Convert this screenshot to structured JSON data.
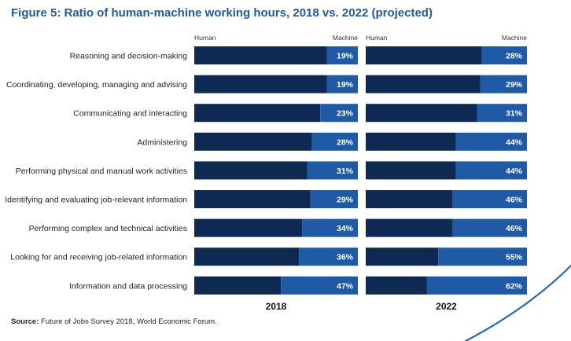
{
  "title": "Figure 5: Ratio of human-machine working hours, 2018 vs. 2022 (projected)",
  "source_label": "Source:",
  "source_text": "Future of Jobs Survey 2018, World Economic Forum.",
  "colors": {
    "human": "#0f2a52",
    "machine": "#1f5aa6",
    "title": "#1f5aa6",
    "deco": "#2a66b8"
  },
  "chart_data": [
    {
      "type": "bar",
      "stacked": true,
      "orientation": "horizontal",
      "title": "2018",
      "header_left": "Human",
      "header_right": "Machine",
      "categories": [
        "Reasoning and decision-making",
        "Coordinating, developing, managing and advising",
        "Communicating and interacting",
        "Administering",
        "Performing physical and manual work activities",
        "Identifying and evaluating job-relevant information",
        "Performing complex and technical activities",
        "Looking for and receiving job-related information",
        "Information and data processing"
      ],
      "series": [
        {
          "name": "Human",
          "values": [
            81,
            81,
            77,
            72,
            69,
            71,
            66,
            64,
            53
          ]
        },
        {
          "name": "Machine",
          "values": [
            19,
            19,
            23,
            28,
            31,
            29,
            34,
            36,
            47
          ]
        }
      ],
      "labels": [
        "19%",
        "19%",
        "23%",
        "28%",
        "31%",
        "29%",
        "34%",
        "36%",
        "47%"
      ],
      "xlim": [
        0,
        100
      ]
    },
    {
      "type": "bar",
      "stacked": true,
      "orientation": "horizontal",
      "title": "2022",
      "header_left": "Human",
      "header_right": "Machine",
      "categories": [
        "Reasoning and decision-making",
        "Coordinating, developing, managing and advising",
        "Communicating and interacting",
        "Administering",
        "Performing physical and manual work activities",
        "Identifying and evaluating job-relevant information",
        "Performing complex and technical activities",
        "Looking for and receiving job-related information",
        "Information and data processing"
      ],
      "series": [
        {
          "name": "Human",
          "values": [
            72,
            71,
            69,
            56,
            56,
            54,
            54,
            45,
            38
          ]
        },
        {
          "name": "Machine",
          "values": [
            28,
            29,
            31,
            44,
            44,
            46,
            46,
            55,
            62
          ]
        }
      ],
      "labels": [
        "28%",
        "29%",
        "31%",
        "44%",
        "44%",
        "46%",
        "46%",
        "55%",
        "62%"
      ],
      "xlim": [
        0,
        100
      ]
    }
  ]
}
